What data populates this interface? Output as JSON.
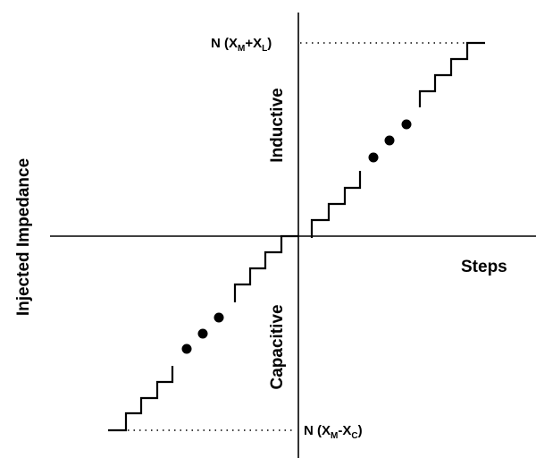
{
  "labels": {
    "y_axis": "Injected Impedance",
    "x_axis": "Steps",
    "upper_region": "Inductive",
    "lower_region": "Capacitive",
    "top_level": {
      "prefix": "N (X",
      "sub1": "M",
      "op": "+X",
      "sub2": "L",
      "suffix": ")"
    },
    "bottom_level": {
      "prefix": "N (X",
      "sub1": "M",
      "op": "-X",
      "sub2": "C",
      "suffix": ")"
    }
  },
  "colors": {
    "stroke": "#000000",
    "background": "#ffffff"
  }
}
